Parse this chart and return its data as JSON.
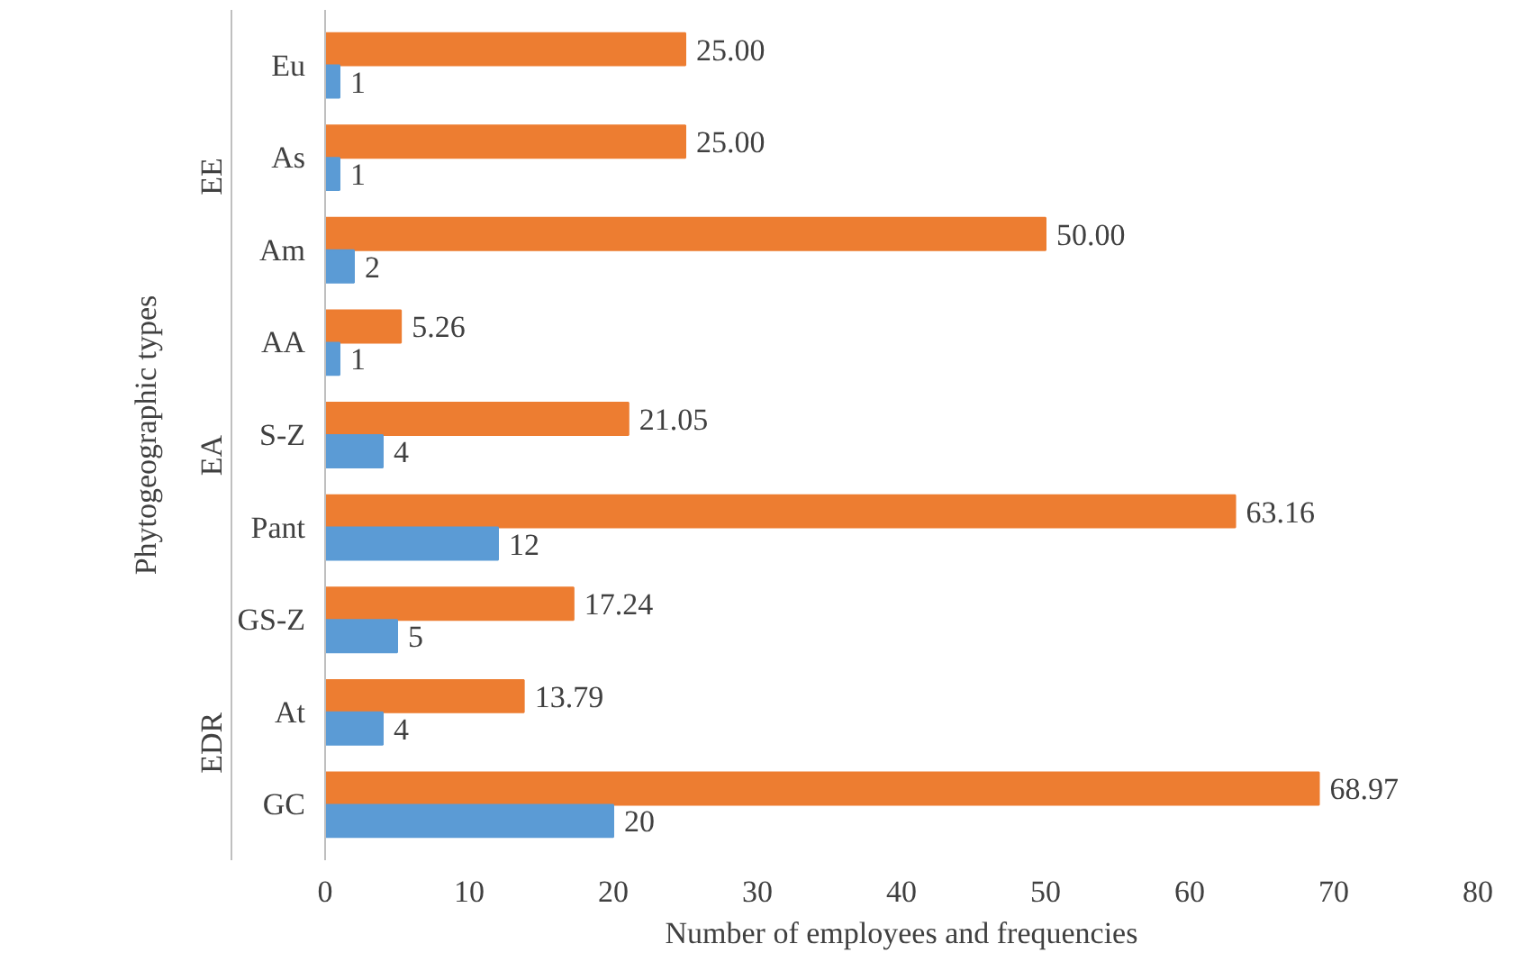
{
  "chart_data": {
    "type": "bar",
    "orientation": "horizontal",
    "xlabel": "Number of employees and frequencies",
    "ylabel": "Phytogeographic types",
    "categories": [
      "Eu",
      "As",
      "Am",
      "AA",
      "S-Z",
      "Pant",
      "GS-Z",
      "At",
      "GC"
    ],
    "series": [
      {
        "color": "#ed7d31",
        "values": [
          25,
          25,
          50,
          5.26,
          21.05,
          63.16,
          17.24,
          13.79,
          68.97
        ],
        "value_labels": [
          "25.00",
          "25.00",
          "50.00",
          "5.26",
          "21.05",
          "63.16",
          "17.24",
          "13.79",
          "68.97"
        ]
      },
      {
        "color": "#5b9bd5",
        "values": [
          1,
          1,
          2,
          1,
          4,
          12,
          5,
          4,
          20
        ],
        "value_labels": [
          "1",
          "1",
          "2",
          "1",
          "4",
          "12",
          "5",
          "4",
          "20"
        ]
      }
    ],
    "annotations": [
      "EE",
      "EA",
      "EDR"
    ],
    "xlim": [
      0,
      80
    ],
    "xticks": [
      0,
      10,
      20,
      30,
      40,
      50,
      60,
      70,
      80
    ],
    "grid": false
  }
}
